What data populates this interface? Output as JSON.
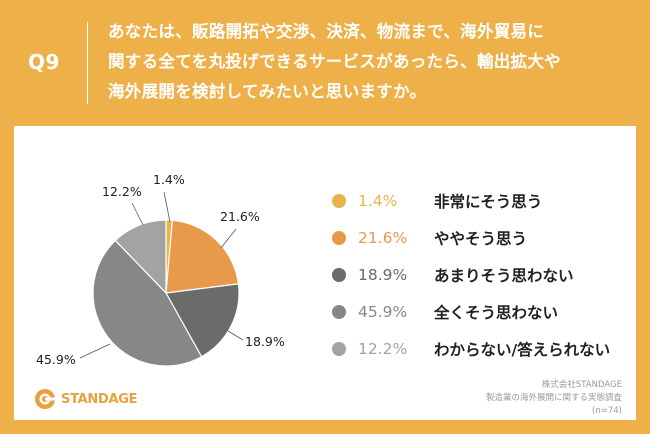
{
  "header": {
    "question_number": "Q9",
    "question_text_lines": [
      "あなたは、販路開拓や交渉、決済、物流まで、海外貿易に",
      "関する全てを丸投げできるサービスがあったら、輸出拡大や",
      "海外展開を検討してみたいと思いますか。"
    ]
  },
  "colors": {
    "background": "#eeb049",
    "slices": [
      "#e8b44a",
      "#e8994a",
      "#6b6b6b",
      "#878787",
      "#a3a3a3"
    ]
  },
  "chart_data": {
    "type": "pie",
    "start_angle": "12 o'clock",
    "direction": "clockwise",
    "labels": [
      "非常にそう思う",
      "ややそう思う",
      "あまりそう思わない",
      "全くそう思わない",
      "わからない/答えられない"
    ],
    "values": [
      1.4,
      21.6,
      18.9,
      45.9,
      12.2
    ],
    "value_labels": [
      "1.4%",
      "21.6%",
      "18.9%",
      "45.9%",
      "12.2%"
    ]
  },
  "legend": [
    {
      "percent": "1.4%",
      "label": "非常にそう思う"
    },
    {
      "percent": "21.6%",
      "label": "ややそう思う"
    },
    {
      "percent": "18.9%",
      "label": "あまりそう思わない"
    },
    {
      "percent": "45.9%",
      "label": "全くそう思わない"
    },
    {
      "percent": "12.2%",
      "label": "わからない/答えられない"
    }
  ],
  "logo": {
    "text": "STANDAGE"
  },
  "footer": {
    "company": "株式会社STANDAGE",
    "survey": "製造業の海外展開に関する実態調査",
    "sample": "(n=74)"
  }
}
